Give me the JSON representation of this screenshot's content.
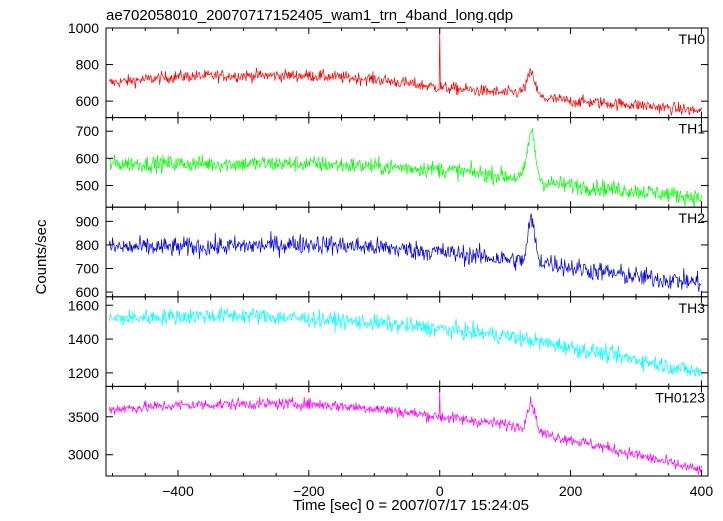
{
  "chart_data": {
    "type": "line",
    "title": "ae702058010_20070717152405_wam1_trn_4band_long.qdp",
    "xlabel": "Time [sec] 0 = 2007/07/17 15:24:05",
    "ylabel": "Counts/sec",
    "xlim": [
      -510,
      410
    ],
    "x_ticks": [
      -400,
      -200,
      0,
      200,
      400
    ],
    "x_tick_labels": [
      "−400",
      "−200",
      "0",
      "200",
      "400"
    ],
    "sample_step_sec": 1,
    "panels": [
      {
        "name": "TH0",
        "color": "#ff0000",
        "ylim": [
          510,
          1000
        ],
        "y_ticks": [
          600,
          800,
          1000
        ],
        "y_tick_labels": [
          "600",
          "800",
          "1000"
        ],
        "trend": [
          [
            -505,
            700
          ],
          [
            -400,
            735
          ],
          [
            -300,
            740
          ],
          [
            -200,
            740
          ],
          [
            -100,
            720
          ],
          [
            0,
            675
          ],
          [
            100,
            645
          ],
          [
            130,
            650
          ],
          [
            150,
            620
          ],
          [
            200,
            600
          ],
          [
            300,
            580
          ],
          [
            400,
            545
          ]
        ],
        "noise": 24,
        "flares": [
          {
            "t": 0,
            "peak": 1000,
            "width": 1
          },
          {
            "t": 140,
            "peak": 790,
            "width": 6
          }
        ]
      },
      {
        "name": "TH1",
        "color": "#00ff00",
        "ylim": [
          420,
          750
        ],
        "y_ticks": [
          500,
          600,
          700
        ],
        "y_tick_labels": [
          "500",
          "600",
          "700"
        ],
        "trend": [
          [
            -505,
            580
          ],
          [
            -400,
            580
          ],
          [
            -200,
            580
          ],
          [
            -100,
            570
          ],
          [
            0,
            560
          ],
          [
            100,
            535
          ],
          [
            130,
            525
          ],
          [
            160,
            510
          ],
          [
            200,
            500
          ],
          [
            300,
            480
          ],
          [
            400,
            455
          ]
        ],
        "noise": 22,
        "flares": [
          {
            "t": 140,
            "peak": 735,
            "width": 6
          }
        ]
      },
      {
        "name": "TH2",
        "color": "#0000e6",
        "ylim": [
          580,
          960
        ],
        "y_ticks": [
          600,
          700,
          800,
          900
        ],
        "y_tick_labels": [
          "600",
          "700",
          "800",
          "900"
        ],
        "trend": [
          [
            -505,
            790
          ],
          [
            -400,
            790
          ],
          [
            -300,
            795
          ],
          [
            -200,
            805
          ],
          [
            -100,
            790
          ],
          [
            0,
            770
          ],
          [
            100,
            740
          ],
          [
            130,
            730
          ],
          [
            160,
            730
          ],
          [
            200,
            705
          ],
          [
            300,
            665
          ],
          [
            400,
            640
          ]
        ],
        "noise": 30,
        "flares": [
          {
            "t": 140,
            "peak": 950,
            "width": 5
          }
        ]
      },
      {
        "name": "TH3",
        "color": "#00ffff",
        "ylim": [
          1120,
          1650
        ],
        "y_ticks": [
          1200,
          1400,
          1600
        ],
        "y_tick_labels": [
          "1200",
          "1400",
          "1600"
        ],
        "trend": [
          [
            -505,
            1520
          ],
          [
            -400,
            1535
          ],
          [
            -300,
            1540
          ],
          [
            -200,
            1520
          ],
          [
            -100,
            1495
          ],
          [
            0,
            1460
          ],
          [
            100,
            1420
          ],
          [
            200,
            1350
          ],
          [
            300,
            1280
          ],
          [
            400,
            1200
          ]
        ],
        "noise": 35,
        "flares": []
      },
      {
        "name": "TH0123",
        "color": "#ff00ff",
        "ylim": [
          2720,
          3900
        ],
        "y_ticks": [
          3000,
          3500
        ],
        "y_tick_labels": [
          "3000",
          "3500"
        ],
        "trend": [
          [
            -505,
            3600
          ],
          [
            -400,
            3650
          ],
          [
            -300,
            3670
          ],
          [
            -200,
            3670
          ],
          [
            -100,
            3610
          ],
          [
            0,
            3500
          ],
          [
            100,
            3400
          ],
          [
            130,
            3360
          ],
          [
            160,
            3270
          ],
          [
            200,
            3200
          ],
          [
            300,
            3000
          ],
          [
            400,
            2790
          ]
        ],
        "noise": 55,
        "flares": [
          {
            "t": 0,
            "peak": 3820,
            "width": 1
          },
          {
            "t": 140,
            "peak": 3850,
            "width": 6
          }
        ]
      }
    ]
  }
}
